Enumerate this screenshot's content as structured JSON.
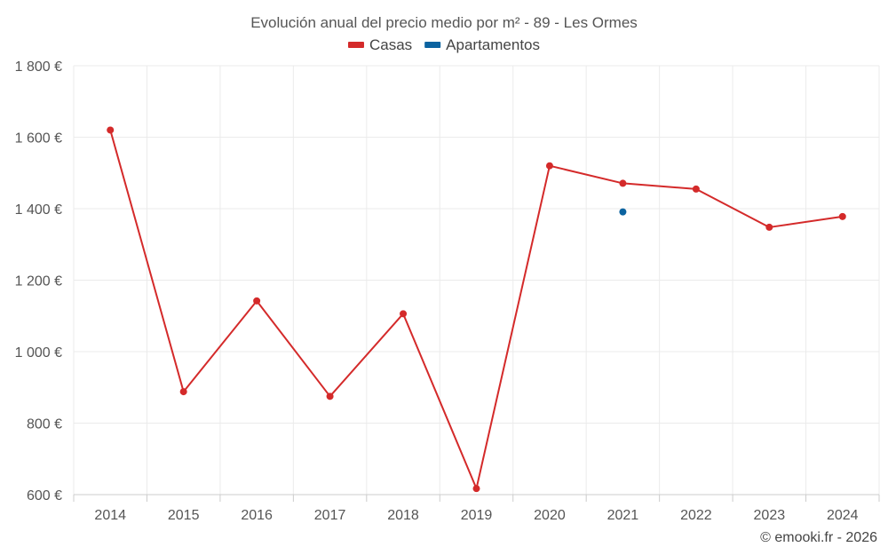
{
  "chart_data": {
    "type": "line",
    "title": "Evolución anual del precio medio por m² - 89 - Les Ormes",
    "categories": [
      "2014",
      "2015",
      "2016",
      "2017",
      "2018",
      "2019",
      "2020",
      "2021",
      "2022",
      "2023",
      "2024"
    ],
    "y_ticks": [
      "600 €",
      "800 €",
      "1 000 €",
      "1 200 €",
      "1 400 €",
      "1 600 €",
      "1 800 €"
    ],
    "ylim": [
      600,
      1800
    ],
    "grid": true,
    "legend_position": "top-center",
    "series": [
      {
        "name": "Casas",
        "color": "#d42a2a",
        "values": [
          1620,
          888,
          1142,
          875,
          1106,
          617,
          1520,
          1471,
          1455,
          1348,
          1378
        ]
      },
      {
        "name": "Apartamentos",
        "color": "#0b63a0",
        "values": [
          null,
          null,
          null,
          null,
          null,
          null,
          null,
          1391,
          null,
          null,
          null
        ]
      }
    ]
  },
  "credit": "© emooki.fr - 2026"
}
